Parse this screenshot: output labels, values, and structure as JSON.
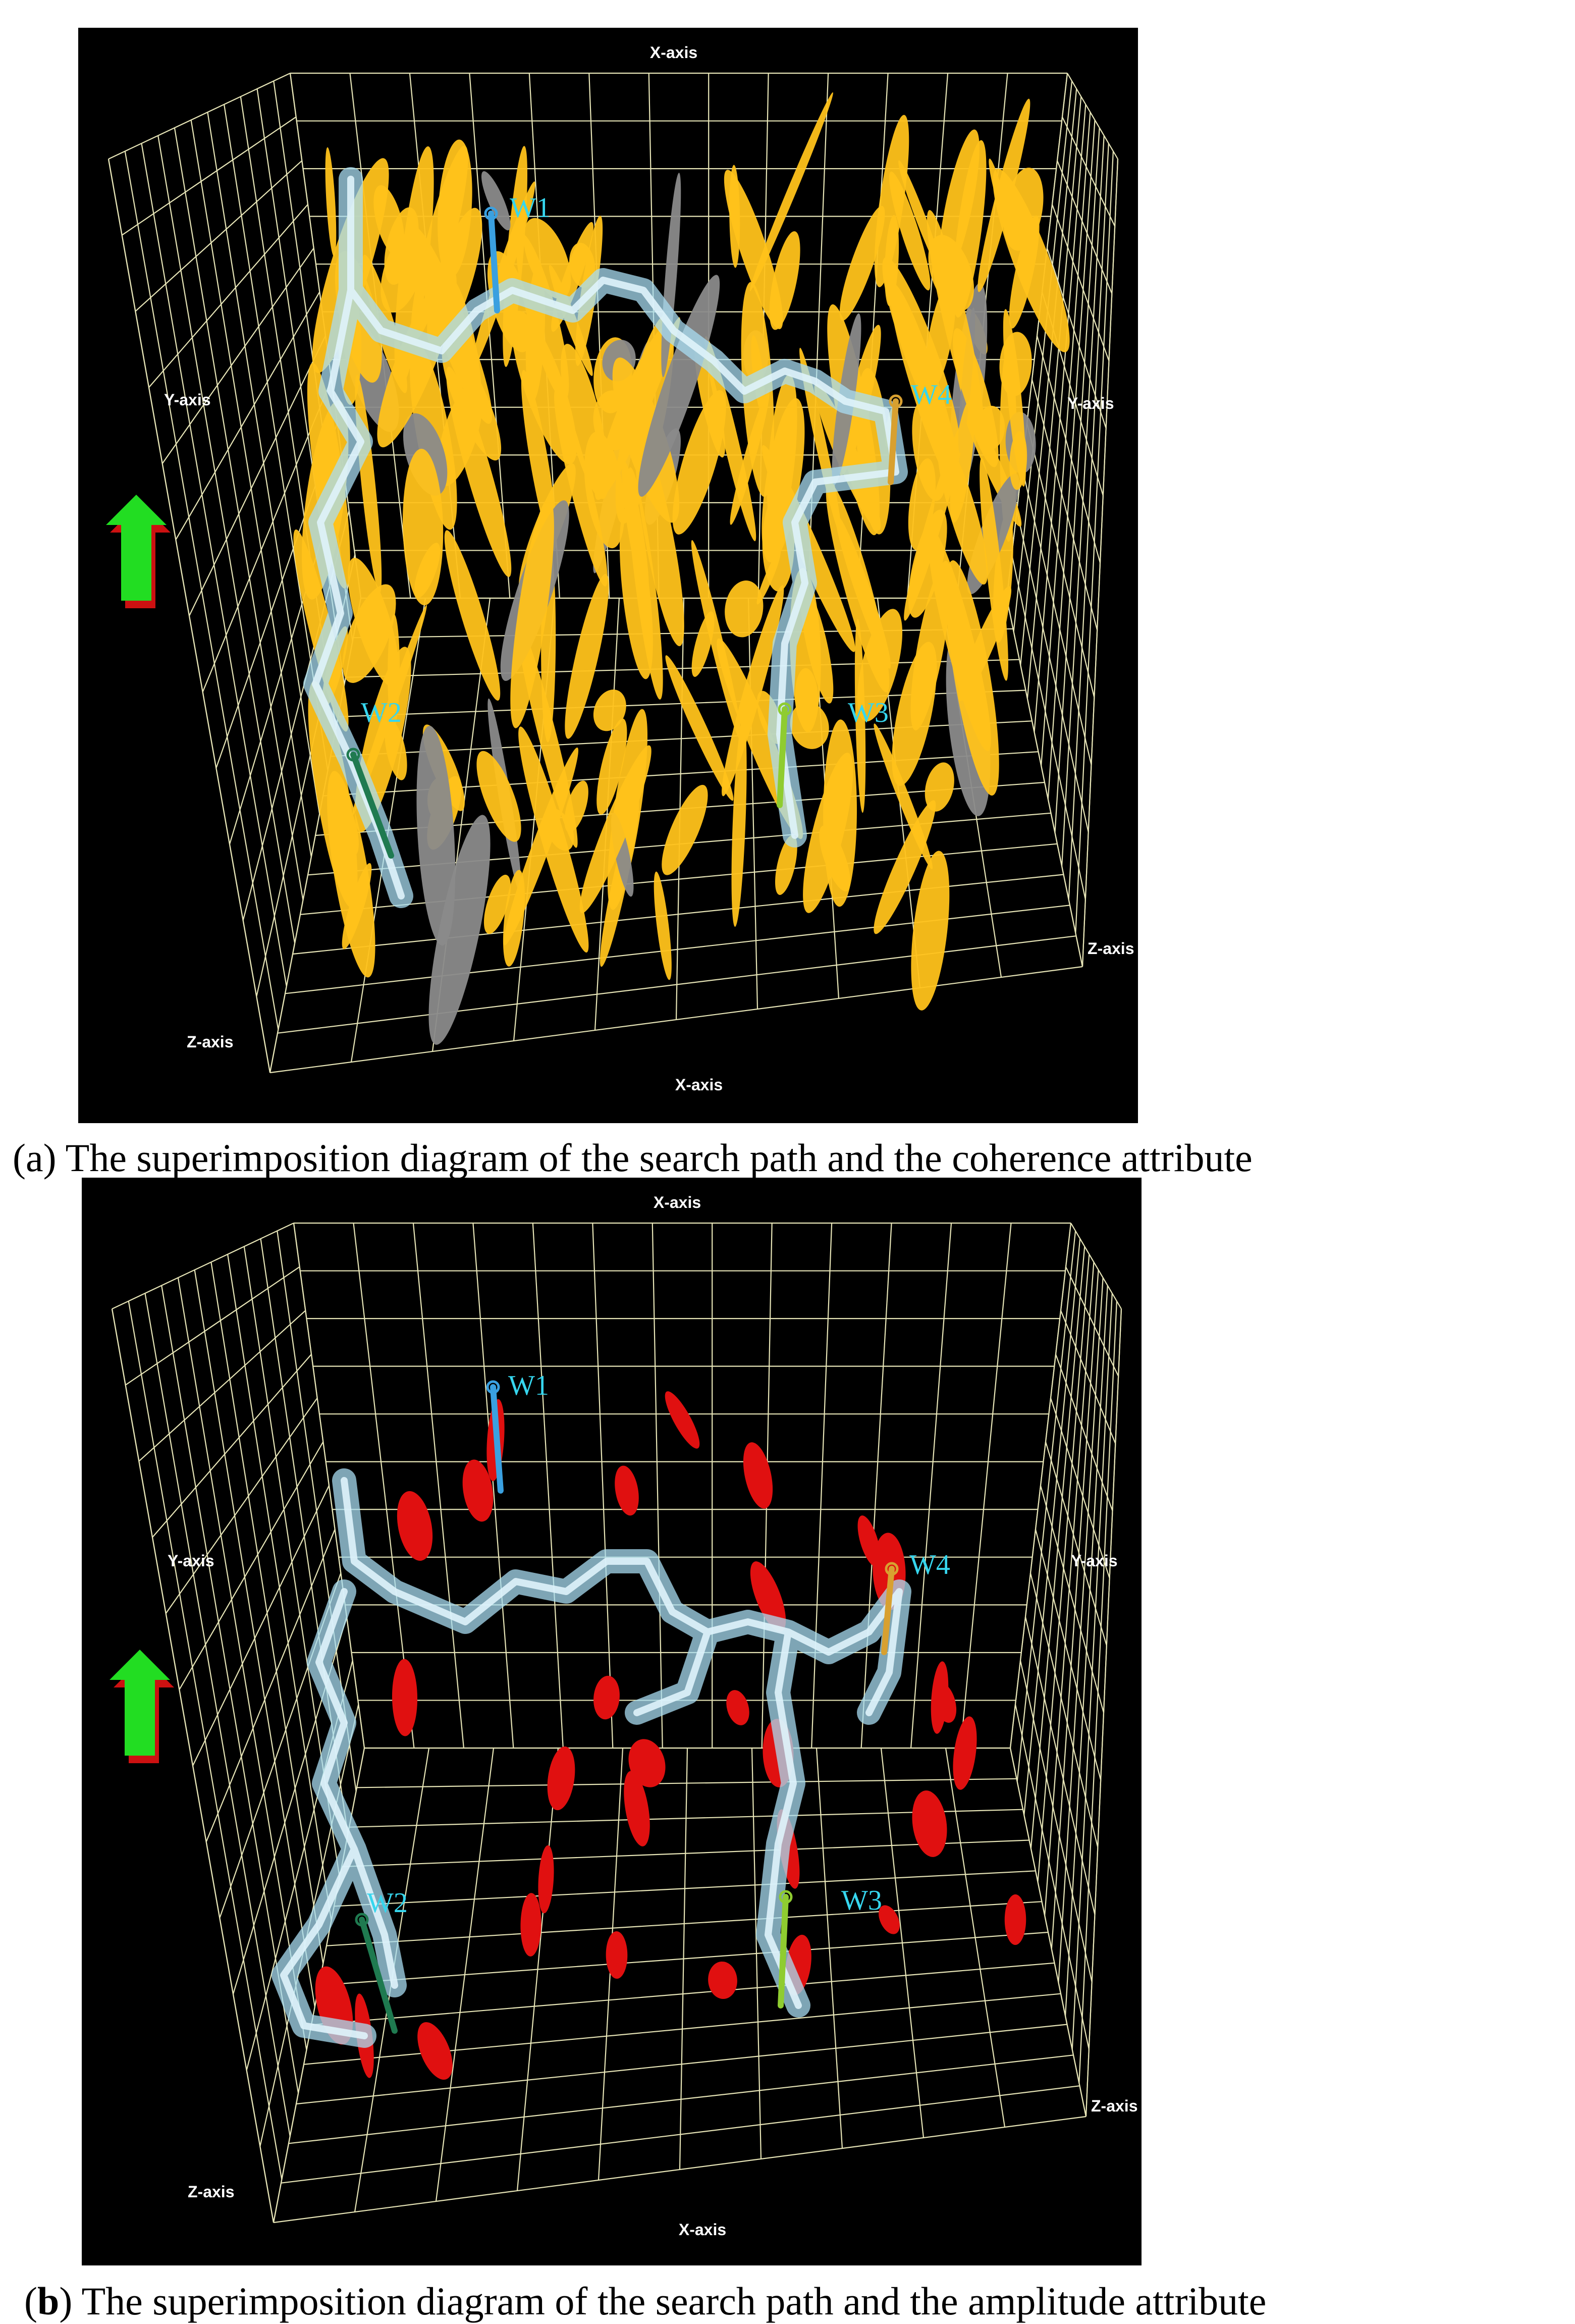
{
  "panel_a": {
    "axes": {
      "x_top": "X-axis",
      "x_bottom": "X-axis",
      "y_left": "Y-axis",
      "y_right": "Y-axis",
      "z_left": "Z-axis",
      "z_right": "Z-axis"
    },
    "wells": {
      "w1": "W1",
      "w2": "W2",
      "w3": "W3",
      "w4": "W4"
    },
    "caption_tag_open": "(a)",
    "caption_text": " The superimposition diagram of the search path and the coherence attribute"
  },
  "panel_b": {
    "axes": {
      "x_top": "X-axis",
      "x_bottom": "X-axis",
      "y_left": "Y-axis",
      "y_right": "Y-axis",
      "z_left": "Z-axis",
      "z_right": "Z-axis"
    },
    "wells": {
      "w1": "W1",
      "w2": "W2",
      "w3": "W3",
      "w4": "W4"
    },
    "caption_tag_open": "(",
    "caption_tag_bold": "b",
    "caption_tag_close": ")",
    "caption_text": " The superimposition diagram of the search path and the amplitude attribute"
  },
  "colors": {
    "background": "#000000",
    "grid": "#e8e6b8",
    "path": "#a8dcf2",
    "coherence": "#ffc21a",
    "amplitude": "#e01010",
    "well_label": "#36d6ee",
    "north_arrow": "#22dd22"
  }
}
